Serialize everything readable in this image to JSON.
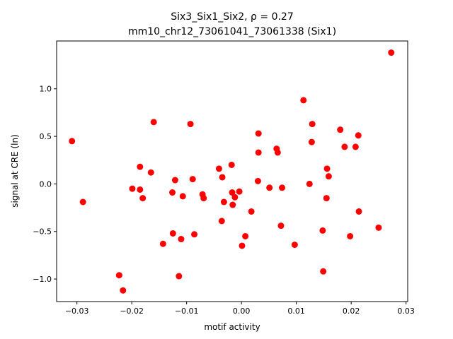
{
  "chart_data": {
    "type": "scatter",
    "title_line1": "Six3_Six1_Six2, ρ = 0.27",
    "title_line2": "mm10_chr12_73061041_73061338 (Six1)",
    "xlabel": "motif activity",
    "ylabel": "signal at CRE (ln)",
    "xlim": [
      -0.0337,
      0.0303
    ],
    "ylim": [
      -1.237,
      1.503
    ],
    "xticks": [
      {
        "value": -0.03,
        "label": "−0.03"
      },
      {
        "value": -0.02,
        "label": "−0.02"
      },
      {
        "value": -0.01,
        "label": "−0.01"
      },
      {
        "value": 0.0,
        "label": "0.00"
      },
      {
        "value": 0.01,
        "label": "0.01"
      },
      {
        "value": 0.02,
        "label": "0.02"
      },
      {
        "value": 0.03,
        "label": "0.03"
      }
    ],
    "yticks": [
      {
        "value": -1.0,
        "label": "−1.0"
      },
      {
        "value": -0.5,
        "label": "−0.5"
      },
      {
        "value": 0.0,
        "label": "0.0"
      },
      {
        "value": 0.5,
        "label": "0.5"
      },
      {
        "value": 1.0,
        "label": "1.0"
      }
    ],
    "grid": false,
    "marker_color": "#ff0000",
    "points": [
      {
        "x": -0.0309,
        "y": 0.45
      },
      {
        "x": -0.0289,
        "y": -0.19
      },
      {
        "x": -0.0223,
        "y": -0.96
      },
      {
        "x": -0.0216,
        "y": -1.12
      },
      {
        "x": -0.0199,
        "y": -0.05
      },
      {
        "x": -0.0185,
        "y": 0.18
      },
      {
        "x": -0.0185,
        "y": -0.06
      },
      {
        "x": -0.018,
        "y": -0.15
      },
      {
        "x": -0.0165,
        "y": 0.12
      },
      {
        "x": -0.016,
        "y": 0.65
      },
      {
        "x": -0.0143,
        "y": -0.63
      },
      {
        "x": -0.0126,
        "y": -0.09
      },
      {
        "x": -0.0125,
        "y": -0.52
      },
      {
        "x": -0.0121,
        "y": 0.04
      },
      {
        "x": -0.0114,
        "y": -0.97
      },
      {
        "x": -0.011,
        "y": -0.58
      },
      {
        "x": -0.0107,
        "y": -0.13
      },
      {
        "x": -0.0093,
        "y": 0.63
      },
      {
        "x": -0.0089,
        "y": 0.05
      },
      {
        "x": -0.0086,
        "y": -0.53
      },
      {
        "x": -0.0071,
        "y": -0.11
      },
      {
        "x": -0.0069,
        "y": -0.15
      },
      {
        "x": -0.0041,
        "y": 0.16
      },
      {
        "x": -0.0036,
        "y": -0.39
      },
      {
        "x": -0.0035,
        "y": 0.07
      },
      {
        "x": -0.0032,
        "y": -0.19
      },
      {
        "x": -0.0018,
        "y": 0.2
      },
      {
        "x": -0.0017,
        "y": -0.09
      },
      {
        "x": -0.0016,
        "y": -0.22
      },
      {
        "x": -0.0012,
        "y": -0.14
      },
      {
        "x": -0.0004,
        "y": -0.08
      },
      {
        "x": 0.0001,
        "y": -0.65
      },
      {
        "x": 0.0007,
        "y": -0.55
      },
      {
        "x": 0.0018,
        "y": -0.29
      },
      {
        "x": 0.003,
        "y": 0.03
      },
      {
        "x": 0.0031,
        "y": 0.53
      },
      {
        "x": 0.0031,
        "y": 0.33
      },
      {
        "x": 0.0051,
        "y": -0.04
      },
      {
        "x": 0.0064,
        "y": 0.37
      },
      {
        "x": 0.0066,
        "y": 0.33
      },
      {
        "x": 0.0072,
        "y": -0.44
      },
      {
        "x": 0.0074,
        "y": -0.04
      },
      {
        "x": 0.0097,
        "y": -0.64
      },
      {
        "x": 0.0113,
        "y": 0.88
      },
      {
        "x": 0.0124,
        "y": 0.0
      },
      {
        "x": 0.0128,
        "y": 0.44
      },
      {
        "x": 0.0129,
        "y": 0.63
      },
      {
        "x": 0.0148,
        "y": -0.49
      },
      {
        "x": 0.0149,
        "y": -0.92
      },
      {
        "x": 0.0155,
        "y": -0.15
      },
      {
        "x": 0.0156,
        "y": 0.16
      },
      {
        "x": 0.0159,
        "y": 0.08
      },
      {
        "x": 0.018,
        "y": 0.57
      },
      {
        "x": 0.0188,
        "y": 0.39
      },
      {
        "x": 0.0198,
        "y": -0.55
      },
      {
        "x": 0.0208,
        "y": 0.39
      },
      {
        "x": 0.0213,
        "y": 0.51
      },
      {
        "x": 0.0214,
        "y": -0.29
      },
      {
        "x": 0.025,
        "y": -0.46
      },
      {
        "x": 0.0273,
        "y": 1.38
      }
    ]
  }
}
